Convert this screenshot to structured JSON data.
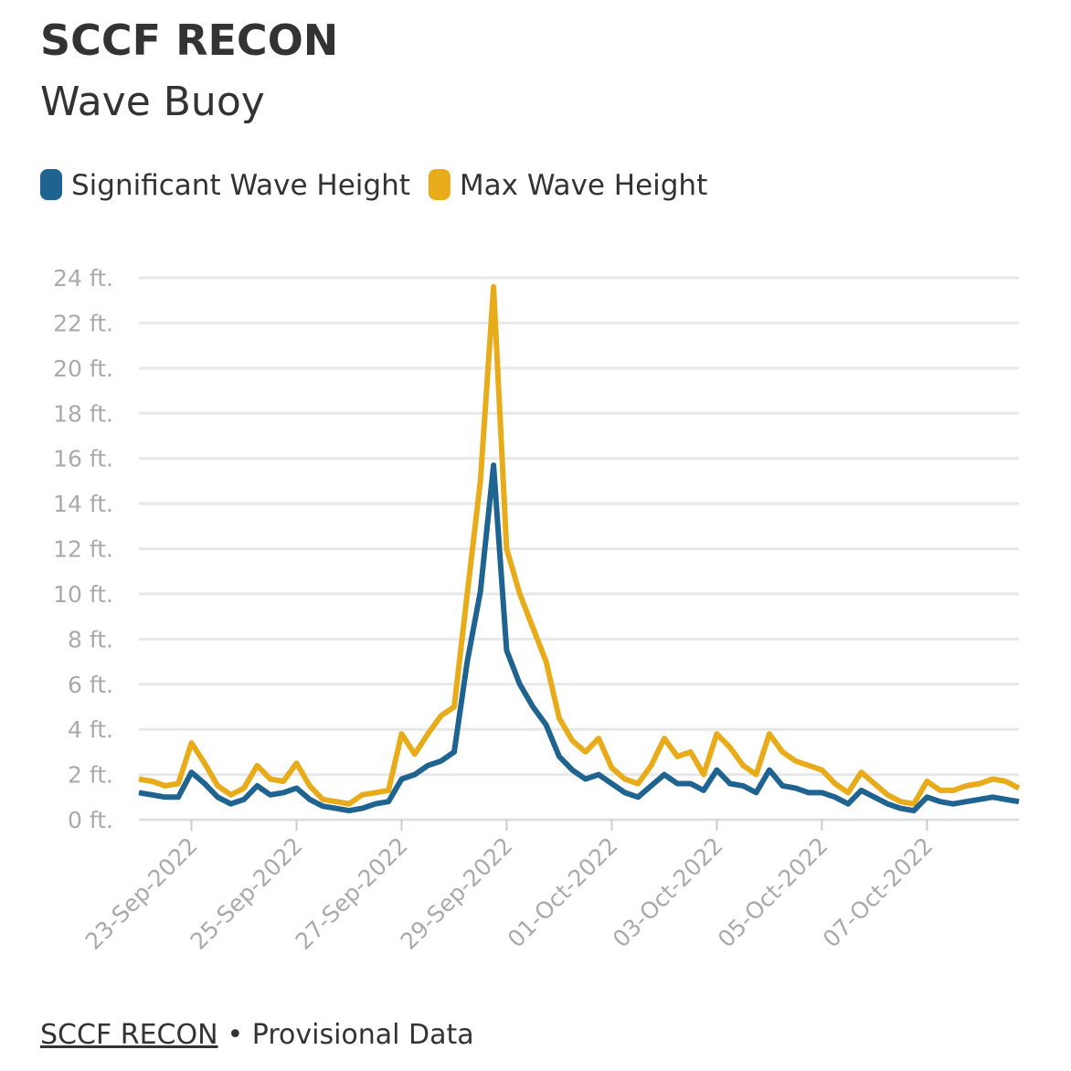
{
  "chart_data": {
    "type": "line",
    "title": "SCCF RECON",
    "subtitle": "Wave Buoy",
    "source": "SCCF RECON",
    "source_note": "• Provisional Data",
    "x": [
      "2022-09-22T00:00",
      "2022-09-22T06:00",
      "2022-09-22T12:00",
      "2022-09-22T18:00",
      "2022-09-23T00:00",
      "2022-09-23T06:00",
      "2022-09-23T12:00",
      "2022-09-23T18:00",
      "2022-09-24T00:00",
      "2022-09-24T06:00",
      "2022-09-24T12:00",
      "2022-09-24T18:00",
      "2022-09-25T00:00",
      "2022-09-25T06:00",
      "2022-09-25T12:00",
      "2022-09-25T18:00",
      "2022-09-26T00:00",
      "2022-09-26T06:00",
      "2022-09-26T12:00",
      "2022-09-26T18:00",
      "2022-09-27T00:00",
      "2022-09-27T06:00",
      "2022-09-27T12:00",
      "2022-09-27T18:00",
      "2022-09-28T00:00",
      "2022-09-28T06:00",
      "2022-09-28T12:00",
      "2022-09-28T18:00",
      "2022-09-29T00:00",
      "2022-09-29T06:00",
      "2022-09-29T12:00",
      "2022-09-29T18:00",
      "2022-09-30T00:00",
      "2022-09-30T06:00",
      "2022-09-30T12:00",
      "2022-09-30T18:00",
      "2022-10-01T00:00",
      "2022-10-01T06:00",
      "2022-10-01T12:00",
      "2022-10-01T18:00",
      "2022-10-02T00:00",
      "2022-10-02T06:00",
      "2022-10-02T12:00",
      "2022-10-02T18:00",
      "2022-10-03T00:00",
      "2022-10-03T06:00",
      "2022-10-03T12:00",
      "2022-10-03T18:00",
      "2022-10-04T00:00",
      "2022-10-04T06:00",
      "2022-10-04T12:00",
      "2022-10-04T18:00",
      "2022-10-05T00:00",
      "2022-10-05T06:00",
      "2022-10-05T12:00",
      "2022-10-05T18:00",
      "2022-10-06T00:00",
      "2022-10-06T06:00",
      "2022-10-06T12:00",
      "2022-10-06T18:00",
      "2022-10-07T00:00",
      "2022-10-07T06:00",
      "2022-10-07T12:00",
      "2022-10-07T18:00",
      "2022-10-08T00:00",
      "2022-10-08T06:00",
      "2022-10-08T12:00",
      "2022-10-08T18:00"
    ],
    "series": [
      {
        "name": "Significant Wave Height",
        "color": "#1f6391",
        "values": [
          1.2,
          1.1,
          1.0,
          1.0,
          2.1,
          1.6,
          1.0,
          0.7,
          0.9,
          1.5,
          1.1,
          1.2,
          1.4,
          0.9,
          0.6,
          0.5,
          0.4,
          0.5,
          0.7,
          0.8,
          1.8,
          2.0,
          2.4,
          2.6,
          3.0,
          7.0,
          10.1,
          15.7,
          7.5,
          6.0,
          5.0,
          4.2,
          2.8,
          2.2,
          1.8,
          2.0,
          1.6,
          1.2,
          1.0,
          1.5,
          2.0,
          1.6,
          1.6,
          1.3,
          2.2,
          1.6,
          1.5,
          1.2,
          2.2,
          1.5,
          1.4,
          1.2,
          1.2,
          1.0,
          0.7,
          1.3,
          1.0,
          0.7,
          0.5,
          0.4,
          1.0,
          0.8,
          0.7,
          0.8,
          0.9,
          1.0,
          0.9,
          0.8
        ]
      },
      {
        "name": "Max Wave Height",
        "color": "#e8ac1b",
        "values": [
          1.8,
          1.7,
          1.5,
          1.6,
          3.4,
          2.5,
          1.5,
          1.1,
          1.4,
          2.4,
          1.8,
          1.7,
          2.5,
          1.5,
          0.9,
          0.8,
          0.7,
          1.1,
          1.2,
          1.3,
          3.8,
          2.9,
          3.8,
          4.6,
          5.0,
          10.0,
          15.0,
          23.6,
          12.0,
          10.0,
          8.5,
          7.0,
          4.5,
          3.5,
          3.0,
          3.6,
          2.3,
          1.8,
          1.6,
          2.4,
          3.6,
          2.8,
          3.0,
          2.0,
          3.8,
          3.2,
          2.4,
          2.0,
          3.8,
          3.0,
          2.6,
          2.4,
          2.2,
          1.6,
          1.2,
          2.1,
          1.6,
          1.1,
          0.8,
          0.7,
          1.7,
          1.3,
          1.3,
          1.5,
          1.6,
          1.8,
          1.7,
          1.4
        ]
      }
    ],
    "xlim": [
      "2022-09-22T00:00",
      "2022-10-08T18:00"
    ],
    "xticks": [
      {
        "value": "2022-09-23T00:00",
        "label": "23-Sep-2022"
      },
      {
        "value": "2022-09-25T00:00",
        "label": "25-Sep-2022"
      },
      {
        "value": "2022-09-27T00:00",
        "label": "27-Sep-2022"
      },
      {
        "value": "2022-09-29T00:00",
        "label": "29-Sep-2022"
      },
      {
        "value": "2022-10-01T00:00",
        "label": "01-Oct-2022"
      },
      {
        "value": "2022-10-03T00:00",
        "label": "03-Oct-2022"
      },
      {
        "value": "2022-10-05T00:00",
        "label": "05-Oct-2022"
      },
      {
        "value": "2022-10-07T00:00",
        "label": "07-Oct-2022"
      }
    ],
    "ylim": [
      0,
      24
    ],
    "yticks": [
      {
        "value": 0,
        "label": "0 ft."
      },
      {
        "value": 2,
        "label": "2 ft."
      },
      {
        "value": 4,
        "label": "4 ft."
      },
      {
        "value": 6,
        "label": "6 ft."
      },
      {
        "value": 8,
        "label": "8 ft."
      },
      {
        "value": 10,
        "label": "10 ft."
      },
      {
        "value": 12,
        "label": "12 ft."
      },
      {
        "value": 14,
        "label": "14 ft."
      },
      {
        "value": 16,
        "label": "16 ft."
      },
      {
        "value": 18,
        "label": "18 ft."
      },
      {
        "value": 20,
        "label": "20 ft."
      },
      {
        "value": 22,
        "label": "22 ft."
      },
      {
        "value": 24,
        "label": "24 ft."
      }
    ],
    "grid": true
  }
}
